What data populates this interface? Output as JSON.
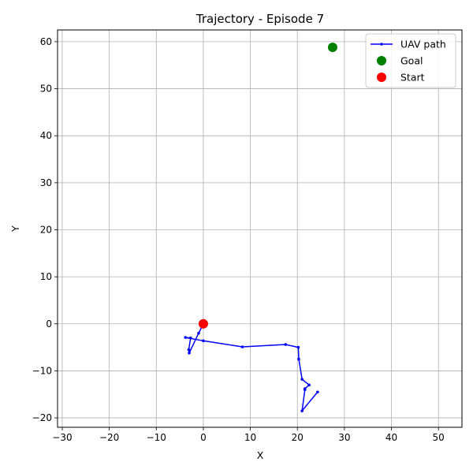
{
  "chart_data": {
    "type": "scatter",
    "title": "Trajectory - Episode 7",
    "xlabel": "X",
    "ylabel": "Y",
    "xlim": [
      -31,
      55
    ],
    "ylim": [
      -22,
      62.5
    ],
    "xticks": [
      -30,
      -20,
      -10,
      0,
      10,
      20,
      30,
      40,
      50
    ],
    "yticks": [
      -20,
      -10,
      0,
      10,
      20,
      30,
      40,
      50,
      60
    ],
    "grid": true,
    "legend": "top-right",
    "series": [
      {
        "name": "UAV path",
        "kind": "line",
        "color": "#0000ff",
        "x": [
          0,
          -1,
          -3,
          -3.1,
          -2.7,
          -3.8,
          0,
          8.3,
          17.5,
          20.2,
          20.3,
          21,
          22.5,
          21.6,
          21.6,
          21,
          24.3
        ],
        "y": [
          0,
          -2,
          -6.2,
          -5.5,
          -3,
          -2.9,
          -3.6,
          -4.9,
          -4.4,
          -5,
          -7.5,
          -11.8,
          -13,
          -13.8,
          -14,
          -18.5,
          -14.5
        ]
      },
      {
        "name": "Goal",
        "kind": "point",
        "color": "#008000",
        "x": [
          27.5
        ],
        "y": [
          58.8
        ]
      },
      {
        "name": "Start",
        "kind": "point",
        "color": "#ff0000",
        "x": [
          0
        ],
        "y": [
          0
        ]
      }
    ]
  }
}
